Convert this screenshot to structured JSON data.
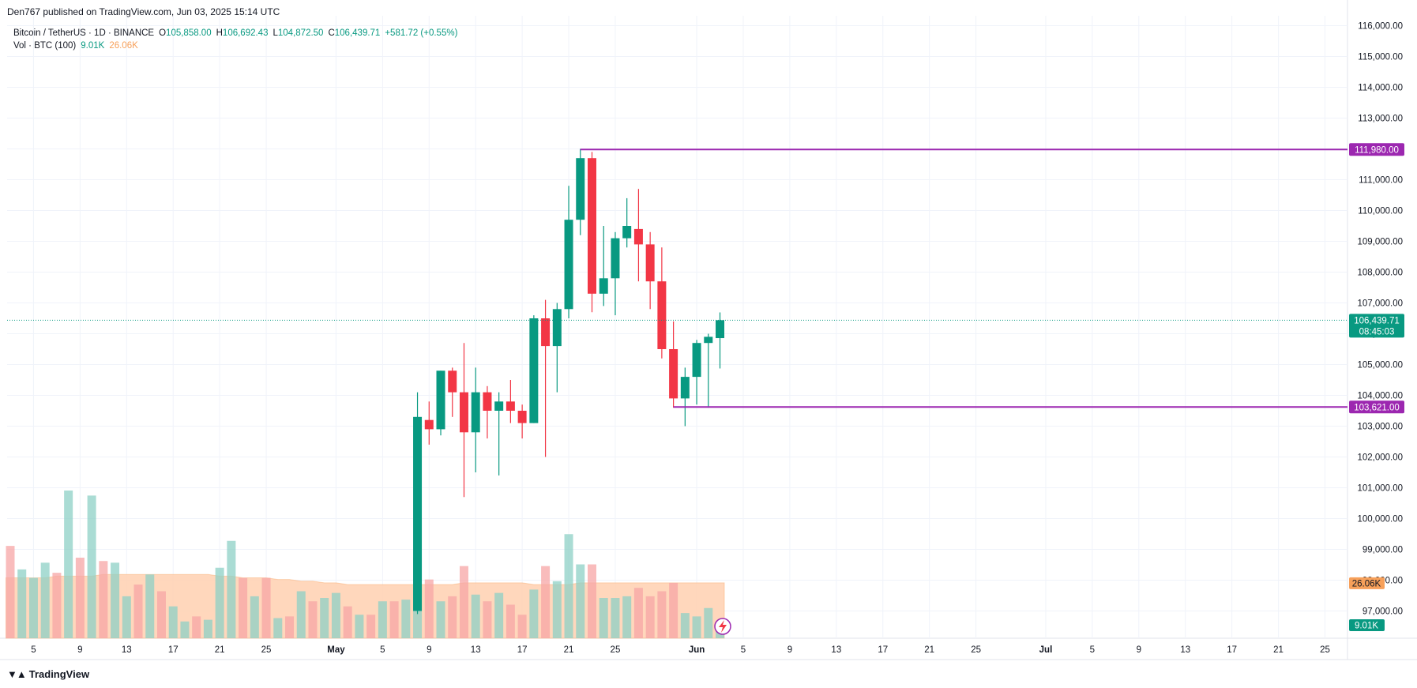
{
  "publisher_line": "Den767 published on TradingView.com, Jun 03, 2025 15:14 UTC",
  "legend": {
    "symbol": "Bitcoin / TetherUS · 1D · BINANCE",
    "open_label": "O",
    "open": "105,858.00",
    "high_label": "H",
    "high": "106,692.43",
    "low_label": "L",
    "low": "104,872.50",
    "close_label": "C",
    "close": "106,439.71",
    "change": "+581.72 (+0.55%)",
    "vol_label": "Vol · BTC (100)",
    "vol_value": "9.01K",
    "vol_ma": "26.06K"
  },
  "footer": {
    "brand": "TradingView",
    "logo_icon": "tradingview-logo-icon"
  },
  "colors": {
    "up": "#089981",
    "down": "#f23645",
    "vol_up": "#8ed0c6",
    "vol_down": "#f7a5a5",
    "vol_ma_fill": "#ffd0b0",
    "level": "#9c27b0",
    "grid": "#f0f3fa",
    "current": "#089981"
  },
  "chart_data": {
    "type": "candlestick",
    "symbol": "Bitcoin / TetherUS",
    "interval": "1D",
    "exchange": "BINANCE",
    "x_start_date": "2025-04-03",
    "x_tick_labels": [
      {
        "text": "5",
        "date": "2025-04-05"
      },
      {
        "text": "9",
        "date": "2025-04-09"
      },
      {
        "text": "13",
        "date": "2025-04-13"
      },
      {
        "text": "17",
        "date": "2025-04-17"
      },
      {
        "text": "21",
        "date": "2025-04-21"
      },
      {
        "text": "25",
        "date": "2025-04-25"
      },
      {
        "text": "May",
        "date": "2025-05-01"
      },
      {
        "text": "5",
        "date": "2025-05-05"
      },
      {
        "text": "9",
        "date": "2025-05-09"
      },
      {
        "text": "13",
        "date": "2025-05-13"
      },
      {
        "text": "17",
        "date": "2025-05-17"
      },
      {
        "text": "21",
        "date": "2025-05-21"
      },
      {
        "text": "25",
        "date": "2025-05-25"
      },
      {
        "text": "Jun",
        "date": "2025-06-01"
      },
      {
        "text": "5",
        "date": "2025-06-05"
      },
      {
        "text": "9",
        "date": "2025-06-09"
      },
      {
        "text": "13",
        "date": "2025-06-13"
      },
      {
        "text": "17",
        "date": "2025-06-17"
      },
      {
        "text": "21",
        "date": "2025-06-21"
      },
      {
        "text": "25",
        "date": "2025-06-25"
      },
      {
        "text": "Jul",
        "date": "2025-07-01"
      },
      {
        "text": "5",
        "date": "2025-07-05"
      },
      {
        "text": "9",
        "date": "2025-07-09"
      },
      {
        "text": "13",
        "date": "2025-07-13"
      },
      {
        "text": "17",
        "date": "2025-07-17"
      },
      {
        "text": "21",
        "date": "2025-07-21"
      },
      {
        "text": "25",
        "date": "2025-07-25"
      }
    ],
    "x_range": [
      "2025-04-03",
      "2025-07-30"
    ],
    "y_range": [
      96300,
      116300
    ],
    "y_ticks": [
      "97,000.00",
      "98,000.00",
      "99,000.00",
      "100,000.00",
      "101,000.00",
      "102,000.00",
      "103,000.00",
      "104,000.00",
      "105,000.00",
      "106,000.00",
      "107,000.00",
      "108,000.00",
      "109,000.00",
      "110,000.00",
      "111,000.00",
      "112,000.00",
      "113,000.00",
      "114,000.00",
      "115,000.00",
      "116,000.00"
    ],
    "grid": true,
    "candles": [
      {
        "d": "2025-05-08",
        "o": 97000,
        "h": 104100,
        "l": 96900,
        "c": 103300
      },
      {
        "d": "2025-05-09",
        "o": 103200,
        "h": 103800,
        "l": 102400,
        "c": 102900
      },
      {
        "d": "2025-05-10",
        "o": 102900,
        "h": 104800,
        "l": 102700,
        "c": 104800
      },
      {
        "d": "2025-05-11",
        "o": 104800,
        "h": 104900,
        "l": 103300,
        "c": 104100
      },
      {
        "d": "2025-05-12",
        "o": 104100,
        "h": 105700,
        "l": 100700,
        "c": 102800
      },
      {
        "d": "2025-05-13",
        "o": 102800,
        "h": 104900,
        "l": 101500,
        "c": 104100
      },
      {
        "d": "2025-05-14",
        "o": 104100,
        "h": 104300,
        "l": 102600,
        "c": 103500
      },
      {
        "d": "2025-05-15",
        "o": 103500,
        "h": 104100,
        "l": 101400,
        "c": 103800
      },
      {
        "d": "2025-05-16",
        "o": 103800,
        "h": 104500,
        "l": 103100,
        "c": 103500
      },
      {
        "d": "2025-05-17",
        "o": 103500,
        "h": 103700,
        "l": 102600,
        "c": 103100
      },
      {
        "d": "2025-05-18",
        "o": 103100,
        "h": 106600,
        "l": 103100,
        "c": 106500
      },
      {
        "d": "2025-05-19",
        "o": 106500,
        "h": 107100,
        "l": 102000,
        "c": 105600
      },
      {
        "d": "2025-05-20",
        "o": 105600,
        "h": 107000,
        "l": 104100,
        "c": 106800
      },
      {
        "d": "2025-05-21",
        "o": 106800,
        "h": 110800,
        "l": 106500,
        "c": 109700
      },
      {
        "d": "2025-05-22",
        "o": 109700,
        "h": 112000,
        "l": 109200,
        "c": 111700
      },
      {
        "d": "2025-05-23",
        "o": 111700,
        "h": 111900,
        "l": 106700,
        "c": 107300
      },
      {
        "d": "2025-05-24",
        "o": 107300,
        "h": 109500,
        "l": 106900,
        "c": 107800
      },
      {
        "d": "2025-05-25",
        "o": 107800,
        "h": 109300,
        "l": 106600,
        "c": 109100
      },
      {
        "d": "2025-05-26",
        "o": 109100,
        "h": 110400,
        "l": 108800,
        "c": 109500
      },
      {
        "d": "2025-05-27",
        "o": 109400,
        "h": 110700,
        "l": 107700,
        "c": 108900
      },
      {
        "d": "2025-05-28",
        "o": 108900,
        "h": 109300,
        "l": 106800,
        "c": 107700
      },
      {
        "d": "2025-05-29",
        "o": 107700,
        "h": 108800,
        "l": 105200,
        "c": 105500
      },
      {
        "d": "2025-05-30",
        "o": 105500,
        "h": 106400,
        "l": 103600,
        "c": 103900
      },
      {
        "d": "2025-05-31",
        "o": 103900,
        "h": 104900,
        "l": 103000,
        "c": 104600
      },
      {
        "d": "2025-06-01",
        "o": 104600,
        "h": 105800,
        "l": 103700,
        "c": 105700
      },
      {
        "d": "2025-06-02",
        "o": 105700,
        "h": 106000,
        "l": 103600,
        "c": 105900
      },
      {
        "d": "2025-06-03",
        "o": 105858,
        "h": 106692.43,
        "l": 104872.5,
        "c": 106439.71
      }
    ],
    "volume": {
      "name": "Vol · BTC (100)",
      "ma_name": "26.06K",
      "bars": [
        {
          "d": "2025-04-03",
          "up": false,
          "v": 27.5
        },
        {
          "d": "2025-04-04",
          "up": true,
          "v": 20.5
        },
        {
          "d": "2025-04-05",
          "up": true,
          "v": 18
        },
        {
          "d": "2025-04-06",
          "up": true,
          "v": 22.5
        },
        {
          "d": "2025-04-07",
          "up": false,
          "v": 19.5
        },
        {
          "d": "2025-04-08",
          "up": true,
          "v": 44
        },
        {
          "d": "2025-04-09",
          "up": false,
          "v": 24
        },
        {
          "d": "2025-04-10",
          "up": true,
          "v": 42.5
        },
        {
          "d": "2025-04-11",
          "up": false,
          "v": 23
        },
        {
          "d": "2025-04-12",
          "up": true,
          "v": 22.5
        },
        {
          "d": "2025-04-13",
          "up": true,
          "v": 12.5
        },
        {
          "d": "2025-04-14",
          "up": false,
          "v": 16
        },
        {
          "d": "2025-04-15",
          "up": true,
          "v": 19
        },
        {
          "d": "2025-04-16",
          "up": false,
          "v": 14
        },
        {
          "d": "2025-04-17",
          "up": true,
          "v": 9.5
        },
        {
          "d": "2025-04-18",
          "up": true,
          "v": 5
        },
        {
          "d": "2025-04-19",
          "up": false,
          "v": 6.5
        },
        {
          "d": "2025-04-20",
          "up": true,
          "v": 5.5
        },
        {
          "d": "2025-04-21",
          "up": true,
          "v": 21
        },
        {
          "d": "2025-04-22",
          "up": true,
          "v": 29
        },
        {
          "d": "2025-04-23",
          "up": false,
          "v": 18
        },
        {
          "d": "2025-04-24",
          "up": true,
          "v": 12.5
        },
        {
          "d": "2025-04-25",
          "up": false,
          "v": 18
        },
        {
          "d": "2025-04-26",
          "up": true,
          "v": 6
        },
        {
          "d": "2025-04-27",
          "up": false,
          "v": 6.5
        },
        {
          "d": "2025-04-28",
          "up": true,
          "v": 14
        },
        {
          "d": "2025-04-29",
          "up": false,
          "v": 11
        },
        {
          "d": "2025-04-30",
          "up": true,
          "v": 12
        },
        {
          "d": "2025-05-01",
          "up": true,
          "v": 13.5
        },
        {
          "d": "2025-05-02",
          "up": false,
          "v": 9.5
        },
        {
          "d": "2025-05-03",
          "up": true,
          "v": 7
        },
        {
          "d": "2025-05-04",
          "up": false,
          "v": 7
        },
        {
          "d": "2025-05-05",
          "up": true,
          "v": 11
        },
        {
          "d": "2025-05-06",
          "up": false,
          "v": 11
        },
        {
          "d": "2025-05-07",
          "up": true,
          "v": 11.5
        },
        {
          "d": "2025-05-08",
          "up": true,
          "v": 24
        },
        {
          "d": "2025-05-09",
          "up": false,
          "v": 17.5
        },
        {
          "d": "2025-05-10",
          "up": true,
          "v": 11
        },
        {
          "d": "2025-05-11",
          "up": false,
          "v": 12.5
        },
        {
          "d": "2025-05-12",
          "up": false,
          "v": 21.5
        },
        {
          "d": "2025-05-13",
          "up": true,
          "v": 13
        },
        {
          "d": "2025-05-14",
          "up": false,
          "v": 11
        },
        {
          "d": "2025-05-15",
          "up": true,
          "v": 13.5
        },
        {
          "d": "2025-05-16",
          "up": false,
          "v": 10
        },
        {
          "d": "2025-05-17",
          "up": false,
          "v": 7
        },
        {
          "d": "2025-05-18",
          "up": true,
          "v": 14.5
        },
        {
          "d": "2025-05-19",
          "up": false,
          "v": 21.5
        },
        {
          "d": "2025-05-20",
          "up": true,
          "v": 17
        },
        {
          "d": "2025-05-21",
          "up": true,
          "v": 31
        },
        {
          "d": "2025-05-22",
          "up": true,
          "v": 22
        },
        {
          "d": "2025-05-23",
          "up": false,
          "v": 22
        },
        {
          "d": "2025-05-24",
          "up": true,
          "v": 12
        },
        {
          "d": "2025-05-25",
          "up": true,
          "v": 12
        },
        {
          "d": "2025-05-26",
          "up": true,
          "v": 12.5
        },
        {
          "d": "2025-05-27",
          "up": false,
          "v": 15
        },
        {
          "d": "2025-05-28",
          "up": false,
          "v": 12.5
        },
        {
          "d": "2025-05-29",
          "up": false,
          "v": 14
        },
        {
          "d": "2025-05-30",
          "up": false,
          "v": 16.5
        },
        {
          "d": "2025-05-31",
          "up": true,
          "v": 7.5
        },
        {
          "d": "2025-06-01",
          "up": true,
          "v": 6.5
        },
        {
          "d": "2025-06-02",
          "up": true,
          "v": 9
        },
        {
          "d": "2025-06-03",
          "up": true,
          "v": 4
        }
      ],
      "ma": [
        18,
        18,
        18,
        18,
        18.5,
        18.5,
        18.5,
        18.5,
        19,
        19,
        19,
        19,
        19,
        19,
        19,
        19,
        19,
        19,
        18.5,
        18.5,
        18,
        18,
        18,
        17.5,
        17.5,
        17,
        17,
        16.5,
        16.5,
        16,
        16,
        16,
        16,
        16,
        16,
        16,
        16,
        16,
        16,
        16.5,
        16.5,
        16.5,
        16.5,
        16.5,
        16.5,
        16,
        16,
        16,
        16,
        16.5,
        16.5,
        16.5,
        16.5,
        16.5,
        16.5,
        16.5,
        16.5,
        16.5,
        16.5,
        16.5,
        16.5,
        16.5
      ]
    },
    "horizontal_levels": [
      {
        "value": 111980,
        "label": "111,980.00",
        "from": "2025-05-22"
      },
      {
        "value": 103621,
        "label": "103,621.00",
        "from": "2025-05-30"
      }
    ],
    "current_price": {
      "value": 106439.71,
      "label": "106,439.71",
      "countdown": "08:45:03"
    },
    "volume_tags": {
      "ma": "26.06K",
      "vol": "9.01K"
    }
  }
}
